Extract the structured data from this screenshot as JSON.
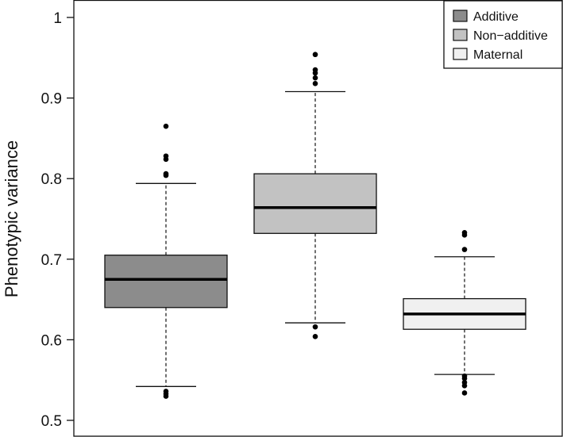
{
  "chart_data": {
    "type": "boxplot",
    "title": "",
    "xlabel": "",
    "ylabel": "Phenotypic variance",
    "ylim": [
      0.5,
      1.0
    ],
    "yticks": [
      0.5,
      0.6,
      0.7,
      0.8,
      0.9,
      1.0
    ],
    "ytick_labels": [
      "0.5",
      "0.6",
      "0.7",
      "0.8",
      "0.9",
      "1"
    ],
    "grid": false,
    "legend_position": "top-right",
    "series": [
      {
        "name": "Additive",
        "color": "#8c8c8c",
        "whisker_low": 0.542,
        "q1": 0.64,
        "median": 0.675,
        "q3": 0.705,
        "whisker_high": 0.794,
        "outliers": [
          0.865,
          0.828,
          0.824,
          0.806,
          0.804,
          0.536,
          0.533,
          0.53
        ]
      },
      {
        "name": "Non−additive",
        "color": "#c2c2c2",
        "whisker_low": 0.621,
        "q1": 0.732,
        "median": 0.764,
        "q3": 0.806,
        "whisker_high": 0.908,
        "outliers": [
          0.954,
          0.935,
          0.931,
          0.925,
          0.918,
          0.616,
          0.604
        ]
      },
      {
        "name": "Maternal",
        "color": "#f0f0f0",
        "whisker_low": 0.557,
        "q1": 0.613,
        "median": 0.632,
        "q3": 0.651,
        "whisker_high": 0.703,
        "outliers": [
          0.733,
          0.73,
          0.712,
          0.555,
          0.552,
          0.547,
          0.543,
          0.534
        ]
      }
    ]
  }
}
